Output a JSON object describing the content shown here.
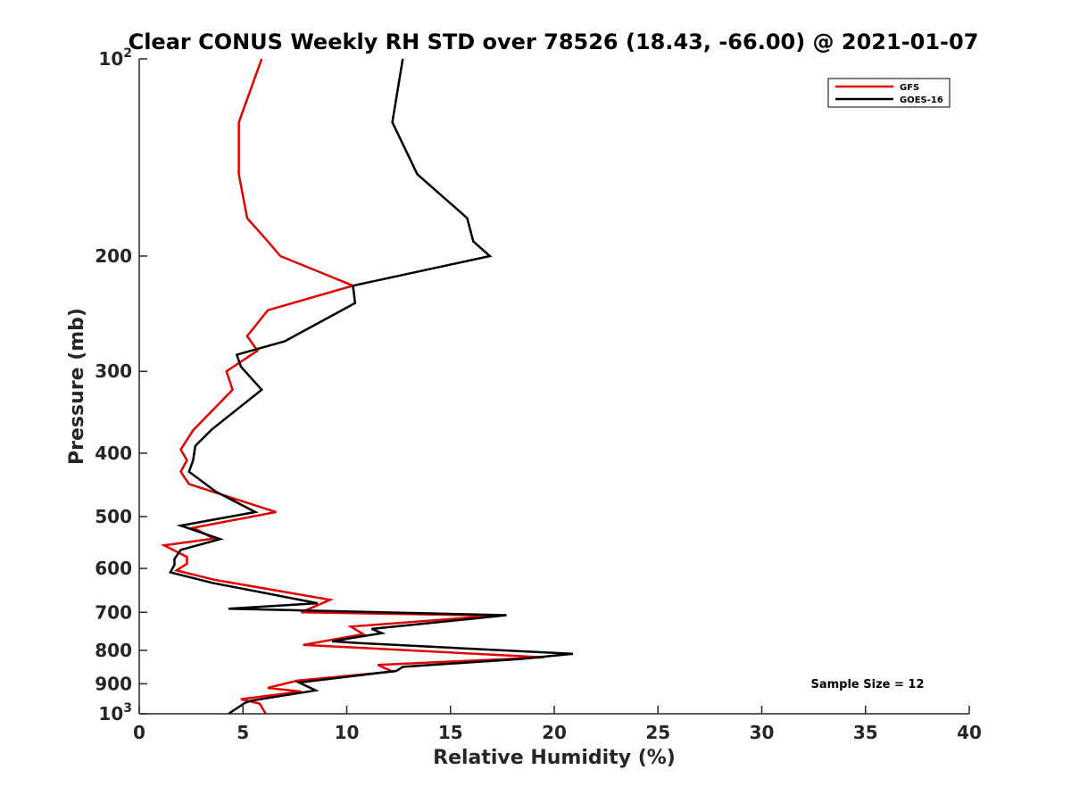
{
  "chart_data": {
    "type": "line",
    "title": "Clear CONUS Weekly RH STD over 78526 (18.43, -66.00) @ 2021-01-07",
    "xlabel": "Relative Humidity (%)",
    "ylabel": "Pressure (mb)",
    "xlim": [
      0,
      40
    ],
    "ylim": [
      100,
      1000
    ],
    "yscale": "log",
    "yreversed": true,
    "grid": false,
    "legend_position": "top-right",
    "x_ticks": [
      "0",
      "5",
      "10",
      "15",
      "20",
      "25",
      "30",
      "35",
      "40"
    ],
    "y_ticks": [
      {
        "value": 100,
        "base": "10",
        "exp": "2"
      },
      {
        "value": 200,
        "base": "200",
        "exp": ""
      },
      {
        "value": 300,
        "base": "300",
        "exp": ""
      },
      {
        "value": 400,
        "base": "400",
        "exp": ""
      },
      {
        "value": 500,
        "base": "500",
        "exp": ""
      },
      {
        "value": 600,
        "base": "600",
        "exp": ""
      },
      {
        "value": 700,
        "base": "700",
        "exp": ""
      },
      {
        "value": 800,
        "base": "800",
        "exp": ""
      },
      {
        "value": 900,
        "base": "900",
        "exp": ""
      },
      {
        "value": 1000,
        "base": "10",
        "exp": "3"
      }
    ],
    "annotation": "Sample Size = 12",
    "series": [
      {
        "name": "GFS",
        "color": "#e00000",
        "points": [
          [
            5.9,
            100
          ],
          [
            4.8,
            125
          ],
          [
            4.8,
            150
          ],
          [
            5.2,
            175
          ],
          [
            6.2,
            190
          ],
          [
            6.8,
            200
          ],
          [
            10.3,
            222
          ],
          [
            6.2,
            242
          ],
          [
            5.2,
            265
          ],
          [
            5.7,
            279
          ],
          [
            4.2,
            300
          ],
          [
            4.5,
            320
          ],
          [
            2.6,
            369
          ],
          [
            2.0,
            395
          ],
          [
            2.3,
            410
          ],
          [
            2.0,
            427
          ],
          [
            2.4,
            446
          ],
          [
            6.6,
            492
          ],
          [
            2.6,
            520
          ],
          [
            3.6,
            540
          ],
          [
            1.2,
            553
          ],
          [
            2.3,
            576
          ],
          [
            2.3,
            590
          ],
          [
            1.8,
            604
          ],
          [
            3.6,
            624
          ],
          [
            9.2,
            670
          ],
          [
            7.8,
            700
          ],
          [
            17.2,
            708
          ],
          [
            10.2,
            736
          ],
          [
            10.8,
            756
          ],
          [
            7.9,
            785
          ],
          [
            19.5,
            820
          ],
          [
            11.5,
            842
          ],
          [
            12.2,
            862
          ],
          [
            7.6,
            890
          ],
          [
            6.2,
            913
          ],
          [
            7.8,
            925
          ],
          [
            4.9,
            950
          ],
          [
            5.8,
            965
          ],
          [
            6.1,
            1000
          ]
        ]
      },
      {
        "name": "GOES-16",
        "color": "#000000",
        "points": [
          [
            12.7,
            100
          ],
          [
            12.2,
            125
          ],
          [
            13.4,
            150
          ],
          [
            15.8,
            175
          ],
          [
            16.1,
            190
          ],
          [
            16.9,
            200
          ],
          [
            10.3,
            222
          ],
          [
            10.4,
            236
          ],
          [
            7.0,
            270
          ],
          [
            4.7,
            283
          ],
          [
            4.9,
            295
          ],
          [
            5.9,
            320
          ],
          [
            3.5,
            368
          ],
          [
            2.7,
            390
          ],
          [
            2.6,
            410
          ],
          [
            2.4,
            427
          ],
          [
            3.7,
            458
          ],
          [
            5.6,
            492
          ],
          [
            2.0,
            516
          ],
          [
            3.9,
            541
          ],
          [
            2.0,
            562
          ],
          [
            1.7,
            580
          ],
          [
            1.7,
            592
          ],
          [
            1.5,
            608
          ],
          [
            3.5,
            631
          ],
          [
            8.6,
            678
          ],
          [
            4.3,
            691
          ],
          [
            17.7,
            707
          ],
          [
            11.2,
            742
          ],
          [
            11.7,
            753
          ],
          [
            9.3,
            775
          ],
          [
            10.6,
            780
          ],
          [
            20.9,
            810
          ],
          [
            18.3,
            825
          ],
          [
            12.7,
            848
          ],
          [
            12.4,
            860
          ],
          [
            7.7,
            896
          ],
          [
            8.5,
            921
          ],
          [
            5.4,
            955
          ],
          [
            5.1,
            962
          ],
          [
            4.3,
            1000
          ]
        ]
      }
    ]
  }
}
